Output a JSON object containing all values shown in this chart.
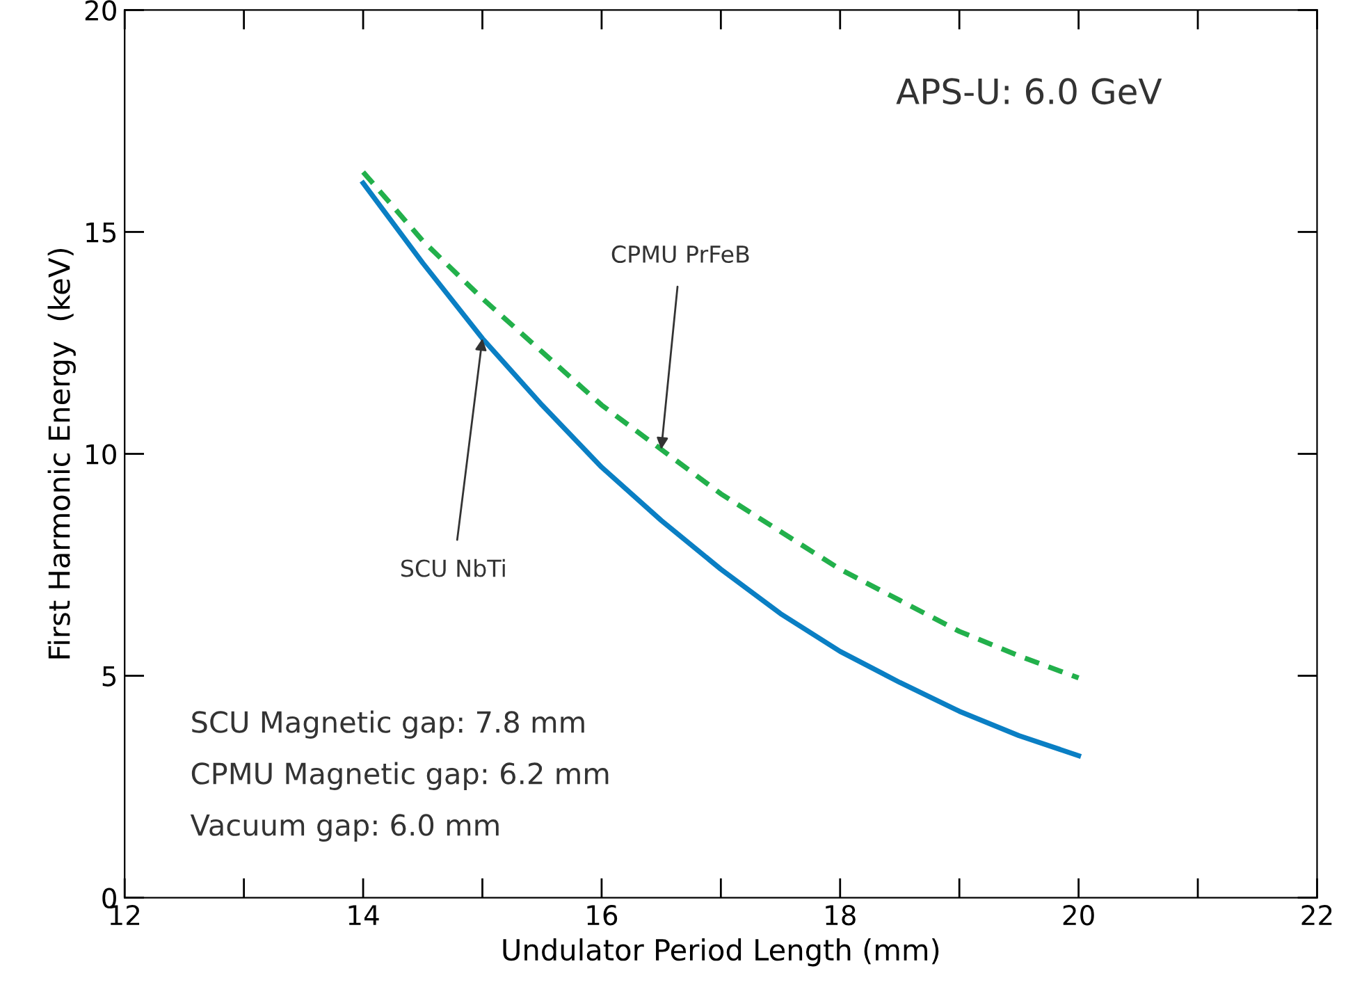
{
  "chart_data": {
    "type": "line",
    "xlabel": "Undulator Period Length (mm)",
    "ylabel": "First Harmonic Energy  (keV)",
    "xlim": [
      12,
      22
    ],
    "xticks": [
      12,
      {
        "value": 13,
        "label": null
      },
      14,
      {
        "value": 15,
        "label": null
      },
      16,
      {
        "value": 17,
        "label": null
      },
      18,
      {
        "value": 19,
        "label": null
      },
      20,
      {
        "value": 21,
        "label": null
      },
      22
    ],
    "ylim": [
      0,
      20
    ],
    "yticks": [
      0,
      5,
      10,
      15,
      20
    ],
    "grid": false,
    "legend": false,
    "marker": "none",
    "x": [
      14,
      14.5,
      15,
      15.5,
      16,
      16.5,
      17,
      17.5,
      18,
      18.5,
      19,
      19.5,
      20
    ],
    "series": [
      {
        "color": "#0a7fc4",
        "line_style": "solid",
        "values": [
          16.1,
          14.3,
          12.6,
          11.1,
          9.7,
          8.5,
          7.4,
          6.4,
          5.55,
          4.85,
          4.2,
          3.65,
          3.2
        ]
      },
      {
        "color": "#22b04b",
        "line_style": "dashed",
        "values": [
          16.35,
          14.8,
          13.5,
          12.3,
          11.1,
          10.1,
          9.1,
          8.25,
          7.4,
          6.7,
          6.0,
          5.45,
          4.95
        ]
      }
    ],
    "annotations": [
      "APS-U: 6.0 GeV",
      "SCU Magnetic gap: 7.8 mm",
      "CPMU Magnetic gap: 6.2 mm",
      "Vacuum gap: 6.0 mm",
      {
        "text": "SCU NbTi",
        "x": 15.0,
        "y": 12.6
      },
      {
        "text": "CPMU PrFeB",
        "x": 16.5,
        "y": 10.1
      }
    ]
  }
}
